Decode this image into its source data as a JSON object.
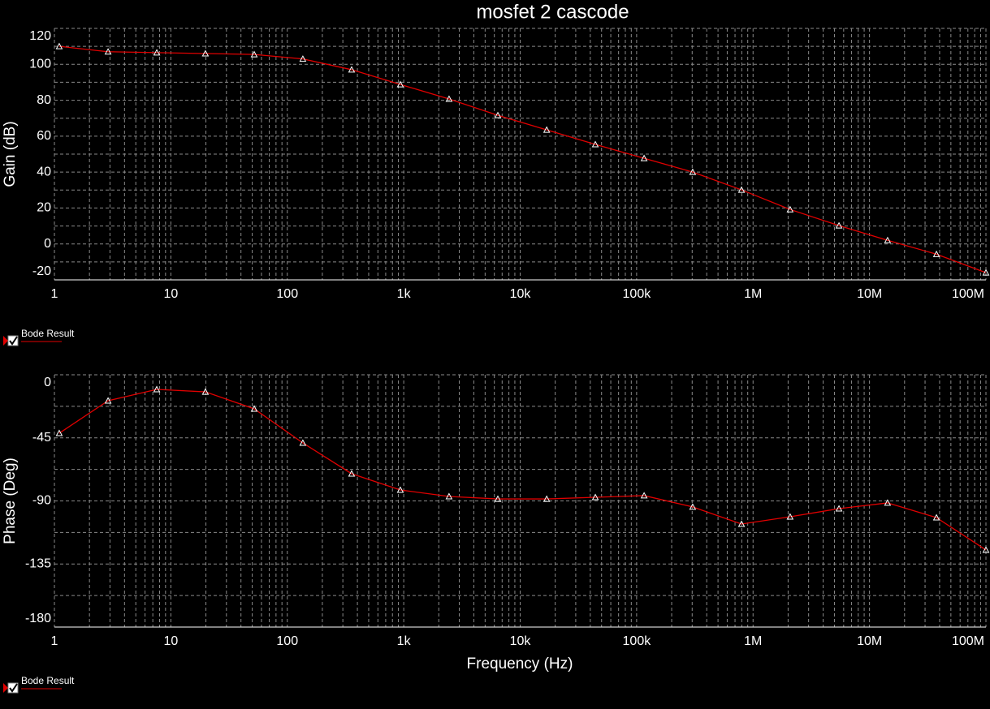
{
  "chart_data": [
    {
      "type": "line",
      "title": "mosfet 2 cascode",
      "ylabel": "Gain (dB)",
      "xscale": "log",
      "grid": true,
      "x": [
        1.1,
        2.89,
        7.57,
        19.8,
        52,
        136,
        357,
        935,
        2450,
        6430,
        16900,
        44200,
        116000,
        303000,
        796000,
        2080000,
        5470000,
        14300000,
        37600000,
        100000000
      ],
      "series": [
        {
          "name": "Bode Result",
          "color": "#e00000",
          "values": [
            110,
            107,
            106.5,
            106,
            105.5,
            103,
            97,
            88.8,
            80.7,
            71.6,
            63.5,
            55.4,
            47.7,
            40,
            30.1,
            19.2,
            10.2,
            2,
            -5.7,
            -16
          ]
        }
      ],
      "xlim": [
        1,
        100000000
      ],
      "xticks": [
        1,
        10,
        100,
        {
          "value": 1000,
          "label": "1k"
        },
        {
          "value": 10000,
          "label": "10k"
        },
        {
          "value": 100000,
          "label": "100k"
        },
        {
          "value": 1000000,
          "label": "1M"
        },
        {
          "value": 10000000,
          "label": "10M"
        },
        {
          "value": 100000000,
          "label": "100M"
        }
      ],
      "xminorticks": [
        2,
        3,
        4,
        5,
        6,
        7,
        8,
        9,
        20,
        30,
        40,
        50,
        60,
        70,
        80,
        90,
        200,
        300,
        400,
        500,
        600,
        700,
        800,
        900,
        2000,
        3000,
        4000,
        5000,
        6000,
        7000,
        8000,
        9000,
        20000,
        30000,
        40000,
        50000,
        60000,
        70000,
        80000,
        90000,
        200000,
        300000,
        400000,
        500000,
        600000,
        700000,
        800000,
        900000,
        2000000,
        3000000,
        4000000,
        5000000,
        6000000,
        7000000,
        8000000,
        9000000,
        20000000,
        30000000,
        40000000,
        50000000,
        60000000,
        70000000,
        80000000,
        90000000
      ],
      "ylim": [
        -20,
        120
      ],
      "yticks": [
        -20,
        0,
        20,
        40,
        60,
        80,
        100,
        120
      ],
      "yminorticks": [
        -10,
        10,
        30,
        50,
        70,
        90,
        110
      ]
    },
    {
      "type": "line",
      "xlabel": "Frequency (Hz)",
      "ylabel": "Phase (Deg)",
      "xscale": "log",
      "grid": true,
      "x": [
        1.1,
        2.89,
        7.57,
        19.8,
        52,
        136,
        357,
        935,
        2450,
        6430,
        16900,
        44200,
        116000,
        303000,
        796000,
        2080000,
        5470000,
        14300000,
        37600000,
        100000000
      ],
      "series": [
        {
          "name": "Bode Result",
          "color": "#e00000",
          "values": [
            -41.7,
            -18.5,
            -10.4,
            -12.2,
            -24.3,
            -48.6,
            -70.6,
            -82.2,
            -86.8,
            -88.6,
            -88.6,
            -87.4,
            -86.2,
            -94.3,
            -106.5,
            -101.3,
            -95.5,
            -91.4,
            -101.9,
            -125
          ]
        }
      ],
      "xlim": [
        1,
        100000000
      ],
      "xticks": [
        1,
        10,
        100,
        {
          "value": 1000,
          "label": "1k"
        },
        {
          "value": 10000,
          "label": "10k"
        },
        {
          "value": 100000,
          "label": "100k"
        },
        {
          "value": 1000000,
          "label": "1M"
        },
        {
          "value": 10000000,
          "label": "10M"
        },
        {
          "value": 100000000,
          "label": "100M"
        }
      ],
      "xminorticks": [
        2,
        3,
        4,
        5,
        6,
        7,
        8,
        9,
        20,
        30,
        40,
        50,
        60,
        70,
        80,
        90,
        200,
        300,
        400,
        500,
        600,
        700,
        800,
        900,
        2000,
        3000,
        4000,
        5000,
        6000,
        7000,
        8000,
        9000,
        20000,
        30000,
        40000,
        50000,
        60000,
        70000,
        80000,
        90000,
        200000,
        300000,
        400000,
        500000,
        600000,
        700000,
        800000,
        900000,
        2000000,
        3000000,
        4000000,
        5000000,
        6000000,
        7000000,
        8000000,
        9000000,
        20000000,
        30000000,
        40000000,
        50000000,
        60000000,
        70000000,
        80000000,
        90000000
      ],
      "ylim": [
        -180,
        0
      ],
      "yticks": [
        -180,
        -135,
        -90,
        -45,
        0
      ],
      "yminorticks": [
        -157.5,
        -112.5,
        -67.5,
        -22.5
      ]
    }
  ]
}
